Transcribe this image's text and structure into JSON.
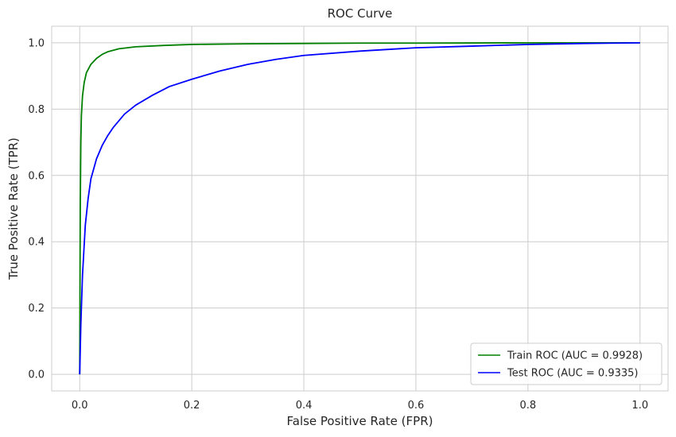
{
  "chart_data": {
    "type": "line",
    "title": "ROC Curve",
    "xlabel": "False Positive Rate (FPR)",
    "ylabel": "True Positive Rate (TPR)",
    "xlim": [
      -0.05,
      1.05
    ],
    "ylim": [
      -0.05,
      1.05
    ],
    "xticks": [
      0.0,
      0.2,
      0.4,
      0.6,
      0.8,
      1.0
    ],
    "yticks": [
      0.0,
      0.2,
      0.4,
      0.6,
      0.8,
      1.0
    ],
    "xtick_labels": [
      "0.0",
      "0.2",
      "0.4",
      "0.6",
      "0.8",
      "1.0"
    ],
    "ytick_labels": [
      "0.0",
      "0.2",
      "0.4",
      "0.6",
      "0.8",
      "1.0"
    ],
    "grid": true,
    "legend_position": "bottom-right",
    "series": [
      {
        "name": "Train ROC (AUC = 0.9928)",
        "color": "#008000",
        "x": [
          0.0,
          0.001,
          0.002,
          0.003,
          0.005,
          0.008,
          0.012,
          0.02,
          0.03,
          0.04,
          0.05,
          0.07,
          0.1,
          0.15,
          0.2,
          0.3,
          0.4,
          0.5,
          0.6,
          0.8,
          1.0
        ],
        "y": [
          0.0,
          0.5,
          0.7,
          0.78,
          0.84,
          0.88,
          0.91,
          0.935,
          0.953,
          0.965,
          0.973,
          0.982,
          0.988,
          0.992,
          0.995,
          0.997,
          0.998,
          0.999,
          0.999,
          1.0,
          1.0
        ]
      },
      {
        "name": "Test ROC (AUC = 0.9335)",
        "color": "#0000ff",
        "x": [
          0.0,
          0.002,
          0.005,
          0.01,
          0.015,
          0.02,
          0.03,
          0.04,
          0.05,
          0.06,
          0.08,
          0.1,
          0.13,
          0.16,
          0.2,
          0.25,
          0.3,
          0.35,
          0.4,
          0.5,
          0.6,
          0.7,
          0.8,
          0.9,
          1.0
        ],
        "y": [
          0.0,
          0.15,
          0.3,
          0.45,
          0.53,
          0.59,
          0.65,
          0.69,
          0.72,
          0.745,
          0.785,
          0.812,
          0.842,
          0.868,
          0.89,
          0.915,
          0.935,
          0.95,
          0.962,
          0.975,
          0.985,
          0.99,
          0.995,
          0.998,
          1.0
        ]
      }
    ]
  }
}
